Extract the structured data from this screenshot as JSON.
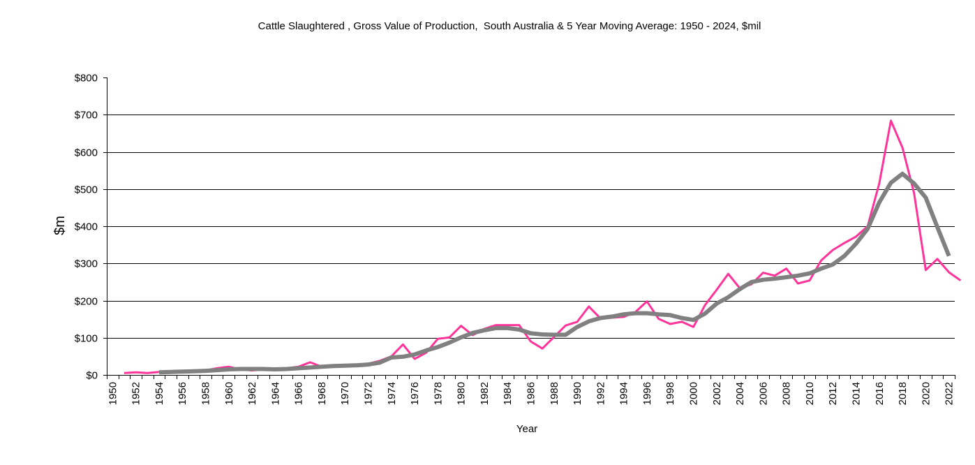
{
  "chart_data": {
    "type": "line",
    "title": "Cattle Slaughtered , Gross Value of Production,  South Australia & 5 Year Moving Average: 1950 - 2024, $mil",
    "xlabel": "Year",
    "ylabel": "$m",
    "ylim": [
      0,
      800
    ],
    "y_ticks": [
      0,
      100,
      200,
      300,
      400,
      500,
      600,
      700,
      800
    ],
    "y_tick_labels": [
      "$0",
      "$100",
      "$200",
      "$300",
      "$400",
      "$500",
      "$600",
      "$700",
      "$800"
    ],
    "grid": "horizontal",
    "legend": "none",
    "x_start": 1950,
    "x_end": 2022,
    "x_tick_labels": [
      "1950",
      "1952",
      "1954",
      "1956",
      "1958",
      "1960",
      "1962",
      "1964",
      "1966",
      "1968",
      "1970",
      "1972",
      "1974",
      "1976",
      "1978",
      "1980",
      "1982",
      "1984",
      "1986",
      "1988",
      "1990",
      "1992",
      "1994",
      "1996",
      "1998",
      "2000",
      "2002",
      "2004",
      "2006",
      "2008",
      "2010",
      "2012",
      "2014",
      "2016",
      "2018",
      "2020",
      "2022"
    ],
    "series": [
      {
        "name": "Gross Value of Production",
        "color": "#ff3399",
        "start_year": 1951,
        "values": [
          5,
          7,
          5,
          8,
          8,
          10,
          10,
          12,
          18,
          22,
          15,
          12,
          15,
          16,
          18,
          22,
          34,
          22,
          23,
          25,
          27,
          30,
          38,
          50,
          82,
          43,
          60,
          97,
          101,
          132,
          107,
          124,
          134,
          134,
          134,
          90,
          71,
          102,
          133,
          143,
          184,
          152,
          154,
          156,
          169,
          198,
          151,
          137,
          143,
          129,
          188,
          229,
          272,
          233,
          244,
          275,
          267,
          286,
          246,
          254,
          308,
          336,
          355,
          372,
          400,
          515,
          684,
          611,
          489,
          282,
          312,
          276,
          254
        ]
      },
      {
        "name": "5 Year Moving Average",
        "color": "#808080",
        "start_year": 1954,
        "values": [
          7,
          8,
          9,
          10,
          11,
          13,
          15,
          16,
          16,
          16,
          15,
          16,
          18,
          20,
          22,
          24,
          25,
          26,
          28,
          33,
          47,
          49,
          55,
          66,
          75,
          87,
          101,
          113,
          120,
          126,
          126,
          122,
          112,
          109,
          108,
          108,
          129,
          144,
          153,
          157,
          163,
          166,
          166,
          163,
          161,
          153,
          148,
          165,
          192,
          209,
          231,
          250,
          256,
          259,
          263,
          267,
          273,
          286,
          297,
          320,
          353,
          393,
          464,
          517,
          541,
          515,
          477,
          398,
          320
        ]
      }
    ]
  }
}
